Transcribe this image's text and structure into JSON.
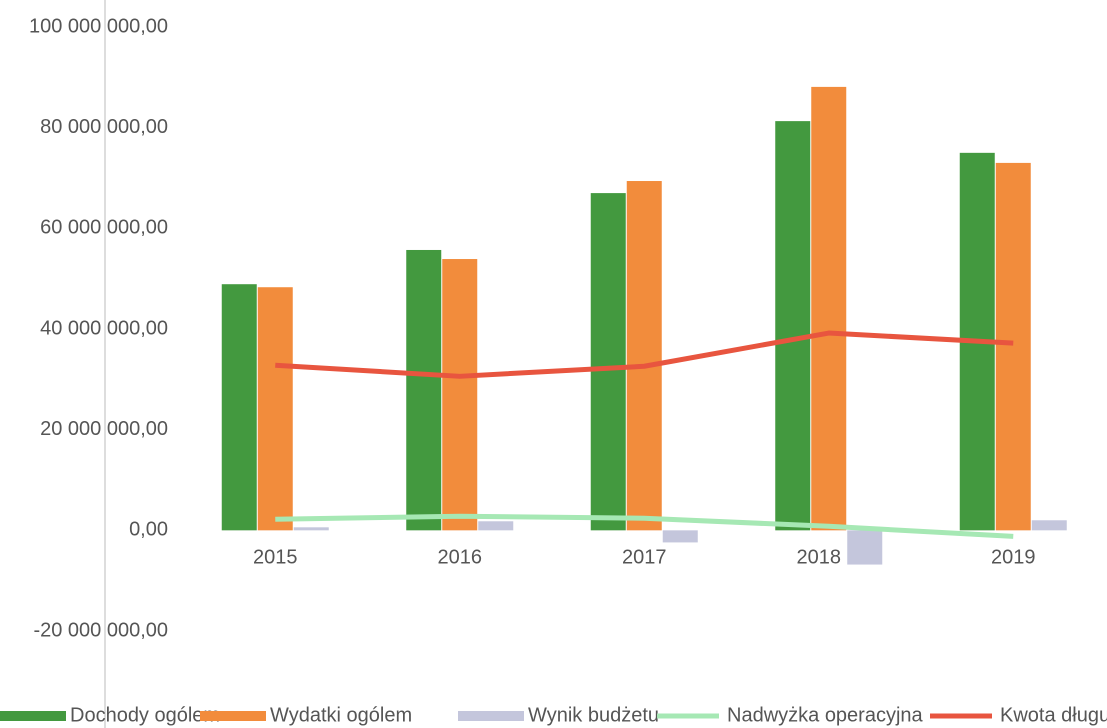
{
  "chart_data": {
    "type": "bar",
    "categories": [
      "2015",
      "2016",
      "2017",
      "2018",
      "2019"
    ],
    "series": [
      {
        "name": "Dochody ogólem",
        "type": "bar",
        "color": "#43993f",
        "values": [
          48900000,
          55700000,
          67000000,
          81300000,
          75000000
        ]
      },
      {
        "name": "Wydatki ogólem",
        "type": "bar",
        "color": "#f28c3c",
        "values": [
          48300000,
          53900000,
          69400000,
          88100000,
          73000000
        ]
      },
      {
        "name": "Wynik budżetu",
        "type": "bar",
        "color": "#c4c6dc",
        "values": [
          600000,
          1800000,
          -2400000,
          -6800000,
          2000000
        ]
      },
      {
        "name": "Nadwyżka operacyjna",
        "type": "line",
        "color": "#a6e8b4",
        "values": [
          2200000,
          2800000,
          2400000,
          800000,
          -1200000
        ]
      },
      {
        "name": "Kwota długu",
        "type": "line",
        "color": "#e8553f",
        "values": [
          32800000,
          30600000,
          32600000,
          39200000,
          37200000
        ]
      }
    ],
    "ylim": [
      -20000000,
      100000000
    ],
    "yticks": [
      {
        "value": 100000000,
        "label": "100 000 000,00"
      },
      {
        "value": 80000000,
        "label": "80 000 000,00"
      },
      {
        "value": 60000000,
        "label": "60 000 000,00"
      },
      {
        "value": 40000000,
        "label": "40 000 000,00"
      },
      {
        "value": 20000000,
        "label": "20 000 000,00"
      },
      {
        "value": 0,
        "label": "0,00"
      },
      {
        "value": -20000000,
        "label": "-20 000 000,00"
      }
    ],
    "grid": false,
    "legend": "bottom"
  }
}
